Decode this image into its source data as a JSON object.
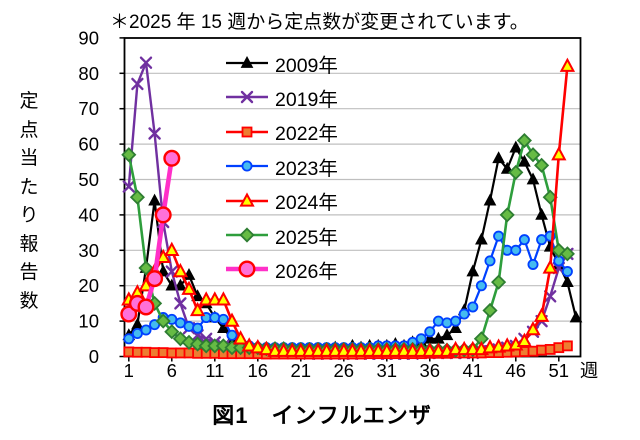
{
  "chart_data": {
    "type": "line",
    "note": "＊2025 年 15 週から定点数が変更されています。",
    "caption": "図1　インフルエンザ",
    "ylabel": "定点当たり報告数",
    "x_unit_label": "週",
    "x_ticks": [
      1,
      6,
      11,
      16,
      21,
      26,
      31,
      36,
      41,
      46,
      51
    ],
    "y_ticks": [
      0,
      10,
      20,
      30,
      40,
      50,
      60,
      70,
      80,
      90
    ],
    "ylim": [
      0,
      90
    ],
    "xlim": [
      1,
      53
    ],
    "grid": "horizontal",
    "grid_color": "#BFBFBF",
    "axis_color": "#000000",
    "legend_position": "upper-left-inside",
    "series": [
      {
        "name": "2009年",
        "color": "#000000",
        "line_width": 2.2,
        "marker": "triangle",
        "marker_size": 6,
        "marker_fill": "#000000",
        "marker_stroke": "#000000",
        "marker_stroke_width": 1,
        "values": [
          6,
          9,
          25,
          44,
          24,
          20,
          20,
          23,
          17,
          15,
          11,
          8,
          5,
          3,
          2,
          2,
          1.5,
          1.5,
          2,
          1.5,
          1.5,
          2,
          2,
          2,
          2.5,
          2,
          3,
          2.5,
          3,
          3,
          3,
          3.5,
          3,
          4,
          4,
          5,
          5,
          6,
          8,
          13,
          24,
          33,
          44,
          56,
          53,
          59,
          55,
          50,
          40,
          31,
          26,
          21,
          11
        ]
      },
      {
        "name": "2019年",
        "color": "#7030A0",
        "line_width": 2.4,
        "marker": "x",
        "marker_size": 5,
        "marker_fill": "none",
        "marker_stroke": "#7030A0",
        "marker_stroke_width": 2.4,
        "values": [
          48,
          77,
          83,
          63,
          38,
          24,
          15,
          8,
          6,
          5,
          4,
          3,
          2.5,
          2,
          2,
          1.5,
          1.5,
          1,
          1,
          1,
          1,
          0.8,
          0.8,
          0.8,
          0.8,
          0.8,
          0.8,
          0.8,
          0.8,
          0.8,
          0.8,
          0.8,
          0.8,
          0.8,
          1,
          1,
          1,
          1,
          1,
          1,
          1,
          1.5,
          1.5,
          2,
          2.5,
          3,
          5,
          7,
          10,
          17,
          25,
          29
        ]
      },
      {
        "name": "2022年",
        "color": "#FF0000",
        "line_width": 2.6,
        "marker": "square",
        "marker_size": 4.5,
        "marker_fill": "#ED7D31",
        "marker_stroke": "#FF0000",
        "marker_stroke_width": 1.8,
        "values": [
          1.3,
          1.2,
          1.2,
          1.1,
          1.1,
          1,
          1,
          1,
          0.9,
          0.9,
          0.9,
          0.8,
          0.8,
          0.8,
          0.8,
          0.8,
          0.7,
          0.7,
          0.7,
          0.7,
          0.7,
          0.7,
          0.7,
          0.7,
          0.7,
          0.7,
          0.7,
          0.7,
          0.8,
          0.8,
          0.8,
          0.8,
          0.8,
          0.8,
          0.8,
          0.9,
          0.9,
          0.9,
          1,
          1,
          1,
          1,
          1.1,
          1.1,
          1.2,
          1.3,
          1.4,
          1.5,
          1.8,
          2,
          2.5,
          3
        ]
      },
      {
        "name": "2023年",
        "color": "#0040FF",
        "line_width": 2.2,
        "marker": "circle",
        "marker_size": 4.6,
        "marker_fill": "#44BBF0",
        "marker_stroke": "#0040FF",
        "marker_stroke_width": 1.8,
        "values": [
          5,
          6.5,
          7.5,
          9,
          11,
          10.5,
          9.5,
          8.5,
          8,
          11,
          11,
          10.5,
          6,
          4,
          3,
          2.5,
          2.5,
          2.5,
          2.5,
          2.5,
          2.5,
          2.5,
          2.5,
          2.5,
          2.5,
          2.5,
          2.5,
          2.5,
          2.5,
          3,
          3,
          3,
          3,
          4,
          5,
          7,
          10,
          9.5,
          10,
          12,
          14,
          20,
          27,
          34,
          30,
          30,
          33,
          26,
          33,
          34,
          27,
          24
        ]
      },
      {
        "name": "2024年",
        "color": "#FF0000",
        "line_width": 2.6,
        "marker": "triangle",
        "marker_size": 6.5,
        "marker_fill": "#FFFF00",
        "marker_stroke": "#FF0000",
        "marker_stroke_width": 2,
        "values": [
          16,
          18,
          20,
          24,
          28,
          30,
          24,
          19,
          13,
          16,
          16,
          16,
          10,
          5,
          3,
          2.5,
          2,
          1.5,
          1.5,
          1.5,
          1.5,
          1.5,
          1.5,
          1.5,
          1.5,
          1.5,
          1.5,
          1.5,
          1.5,
          1.5,
          1.5,
          1.5,
          1.5,
          1.5,
          1.5,
          1.5,
          1.5,
          1.5,
          2,
          2,
          2,
          2,
          2.5,
          2.7,
          3,
          3.3,
          4.3,
          7.6,
          11.4,
          25,
          57,
          82
        ]
      },
      {
        "name": "2025年",
        "color": "#2E9E3C",
        "line_width": 2.6,
        "marker": "diamond",
        "marker_size": 6.3,
        "marker_fill": "#66BB44",
        "marker_stroke": "#2E7D32",
        "marker_stroke_width": 1.8,
        "values": [
          57,
          45,
          25,
          15,
          10,
          7,
          5,
          4,
          3.5,
          3,
          3,
          3,
          2.5,
          2.5,
          2.5,
          2.5,
          2.2,
          2.2,
          2.2,
          2,
          2,
          2,
          2,
          2,
          2,
          2,
          2,
          2,
          2,
          2,
          2,
          2,
          2,
          2,
          2,
          1.8,
          1.8,
          1.8,
          1.8,
          1.9,
          2,
          5,
          13,
          21,
          40,
          52,
          61,
          57,
          54,
          45,
          30,
          29
        ]
      },
      {
        "name": "2026年",
        "color": "#FF30C8",
        "line_width": 4.6,
        "marker": "circle",
        "marker_size": 7.3,
        "marker_fill": "#FF70D8",
        "marker_stroke": "#FF0000",
        "marker_stroke_width": 2.4,
        "values": [
          12,
          15,
          14,
          22,
          40,
          56
        ]
      }
    ]
  }
}
